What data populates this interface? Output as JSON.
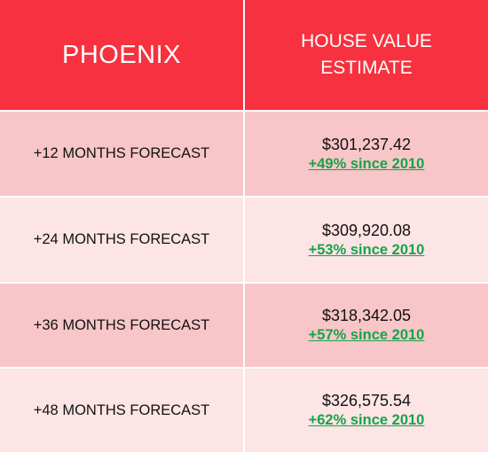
{
  "header": {
    "city": "PHOENIX",
    "value_title_line1": "HOUSE VALUE",
    "value_title_line2": "ESTIMATE"
  },
  "rows": [
    {
      "label": "+12 MONTHS FORECAST",
      "price": "$301,237.42",
      "change": "+49% since 2010"
    },
    {
      "label": "+24 MONTHS FORECAST",
      "price": "$309,920.08",
      "change": "+53% since 2010"
    },
    {
      "label": "+36 MONTHS FORECAST",
      "price": "$318,342.05",
      "change": "+57% since 2010"
    },
    {
      "label": "+48 MONTHS FORECAST",
      "price": "$326,575.54",
      "change": "+62% since 2010"
    }
  ],
  "colors": {
    "header_bg": "#f7313f",
    "row_dark": "#f8c6c8",
    "row_light": "#fde4e5",
    "change_green": "#17a34a"
  }
}
